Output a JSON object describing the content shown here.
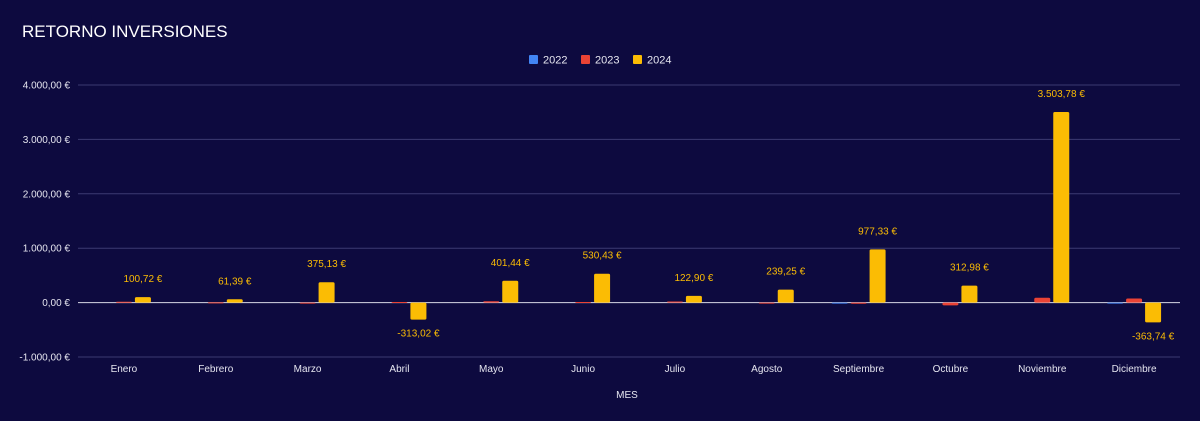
{
  "chart_data": {
    "type": "bar",
    "title": "RETORNO INVERSIONES",
    "xlabel": "MES",
    "ylabel": "",
    "ylim": [
      -1000,
      4000
    ],
    "yticks": [
      {
        "value": 4000,
        "label": "4.000,00 €"
      },
      {
        "value": 3000,
        "label": "3.000,00 €"
      },
      {
        "value": 2000,
        "label": "2.000,00 €"
      },
      {
        "value": 1000,
        "label": "1.000,00 €"
      },
      {
        "value": 0,
        "label": "0,00 €"
      },
      {
        "value": -1000,
        "label": "-1.000,00 €"
      }
    ],
    "grid": true,
    "legend_position": "top-center",
    "categories": [
      "Enero",
      "Febrero",
      "Marzo",
      "Abril",
      "Mayo",
      "Junio",
      "Julio",
      "Agosto",
      "Septiembre",
      "Octubre",
      "Noviembre",
      "Diciembre"
    ],
    "series": [
      {
        "name": "2022",
        "color": "#4285f4",
        "values": [
          0,
          0,
          0,
          0,
          0,
          0,
          0,
          0,
          -5,
          0,
          0,
          -15
        ]
      },
      {
        "name": "2023",
        "color": "#ea4335",
        "values": [
          15,
          5,
          -10,
          10,
          25,
          10,
          20,
          -10,
          -20,
          -50,
          90,
          75
        ]
      },
      {
        "name": "2024",
        "color": "#fbbc04",
        "values": [
          100.72,
          61.39,
          375.13,
          -313.02,
          401.44,
          530.43,
          122.9,
          239.25,
          977.33,
          312.98,
          3503.78,
          -363.74
        ],
        "labels": [
          "100,72 €",
          "61,39 €",
          "375,13 €",
          "-313,02 €",
          "401,44 €",
          "530,43 €",
          "122,90 €",
          "239,25 €",
          "977,33 €",
          "312,98 €",
          "3.503,78 €",
          "-363,74 €"
        ]
      }
    ]
  }
}
